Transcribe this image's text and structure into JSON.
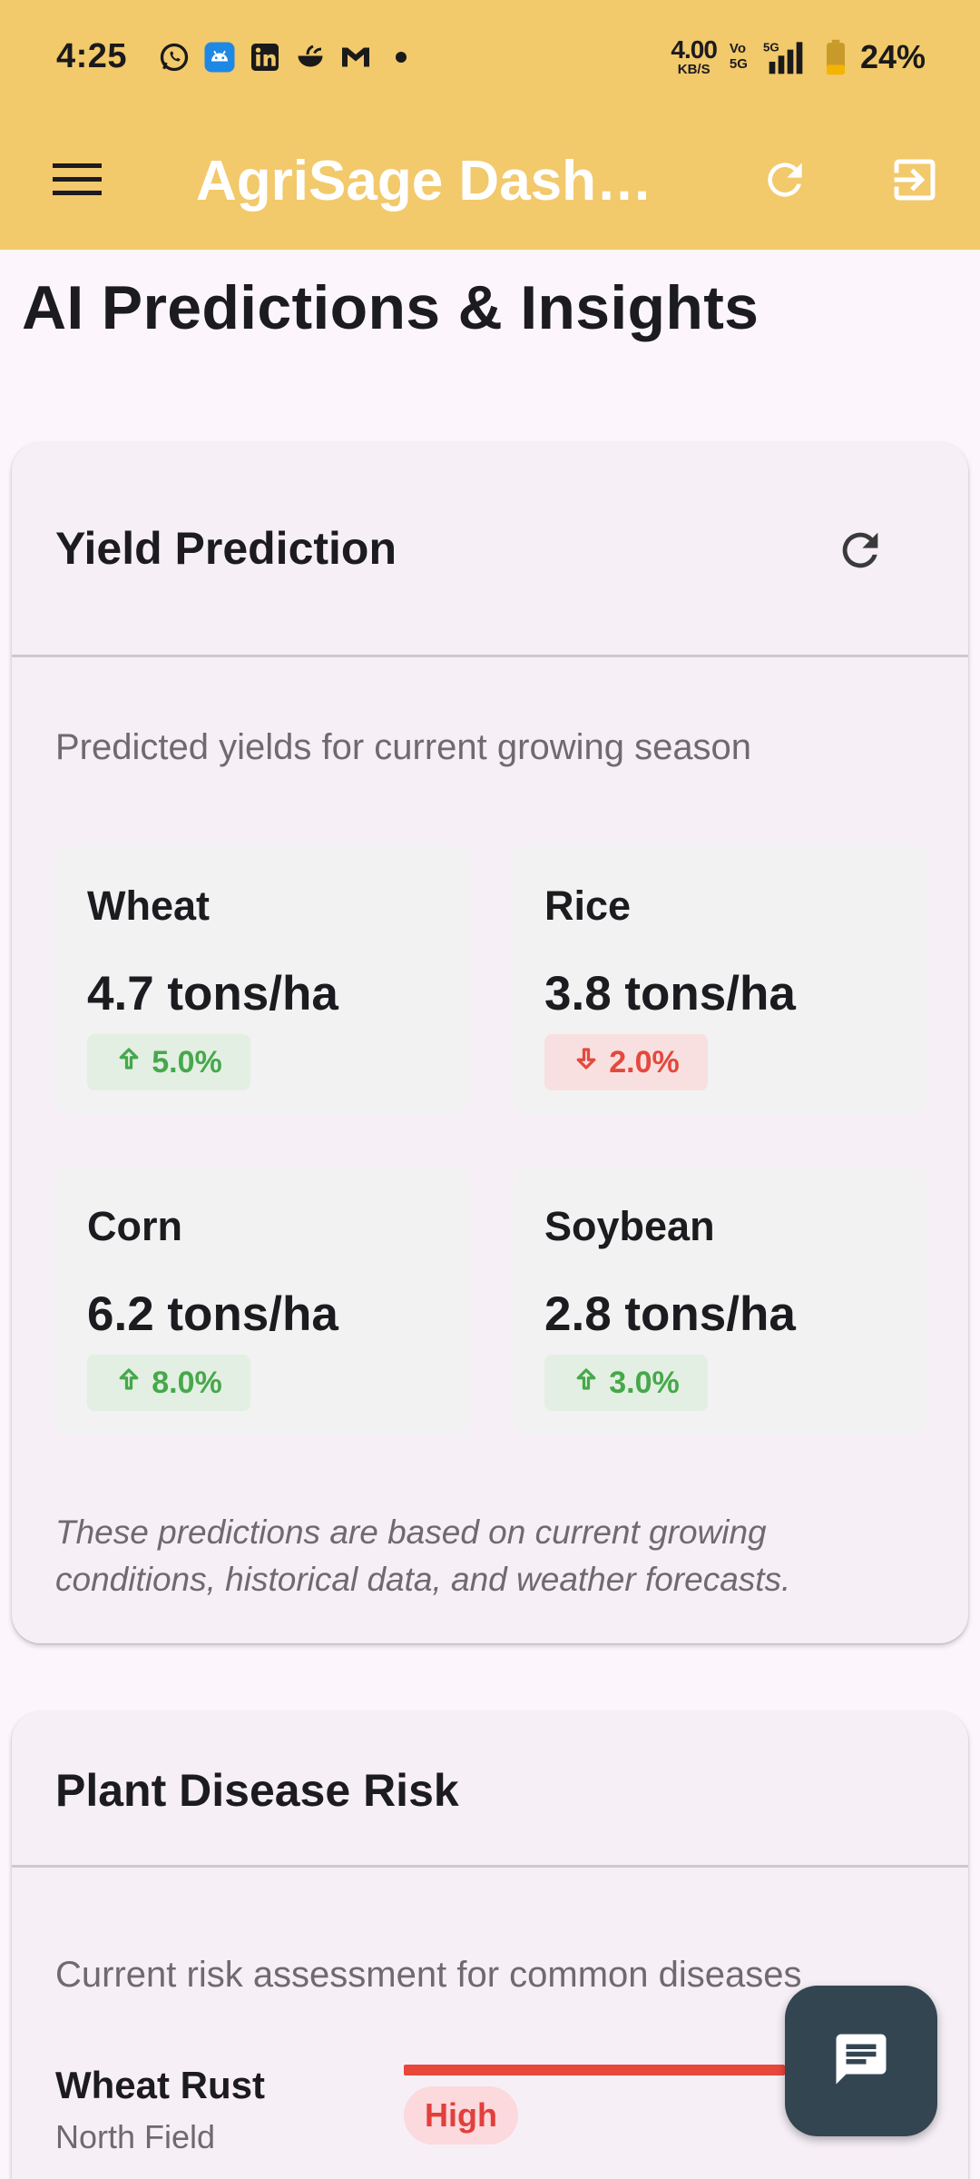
{
  "status_bar": {
    "time": "4:25",
    "net_speed_value": "4.00",
    "net_speed_unit": "KB/S",
    "volte_top": "Vo",
    "volte_bottom": "5G",
    "signal_label": "5G",
    "battery": "24%",
    "notification_icons": [
      "whatsapp-icon",
      "android-app-icon",
      "linkedin-icon",
      "bowl-app-icon",
      "gmail-icon",
      "dot-icon"
    ]
  },
  "app_bar": {
    "title": "AgriSage Dashboard",
    "menu_icon": "menu-icon",
    "refresh_icon": "refresh-icon",
    "logout_icon": "logout-icon",
    "background": "#f2c96b"
  },
  "page": {
    "title": "AI Predictions & Insights"
  },
  "yield_card": {
    "title": "Yield Prediction",
    "subtitle": "Predicted yields for current growing season",
    "crops": [
      {
        "name": "Wheat",
        "value": "4.7 tons/ha",
        "trend": "up",
        "change": "5.0%"
      },
      {
        "name": "Rice",
        "value": "3.8 tons/ha",
        "trend": "down",
        "change": "2.0%"
      },
      {
        "name": "Corn",
        "value": "6.2 tons/ha",
        "trend": "up",
        "change": "8.0%"
      },
      {
        "name": "Soybean",
        "value": "2.8 tons/ha",
        "trend": "up",
        "change": "3.0%"
      }
    ],
    "footnote": "These predictions are based on current growing conditions, historical data, and weather forecasts."
  },
  "disease_card": {
    "title": "Plant Disease Risk",
    "subtitle": "Current risk assessment for common diseases",
    "items": [
      {
        "name": "Wheat Rust",
        "location": "North Field",
        "risk": "High"
      }
    ]
  },
  "fab": {
    "icon": "chat-icon"
  },
  "colors": {
    "trend_up": "#46a84b",
    "trend_down": "#e5483e",
    "risk_high": "#e8473c",
    "fab": "#344552"
  }
}
